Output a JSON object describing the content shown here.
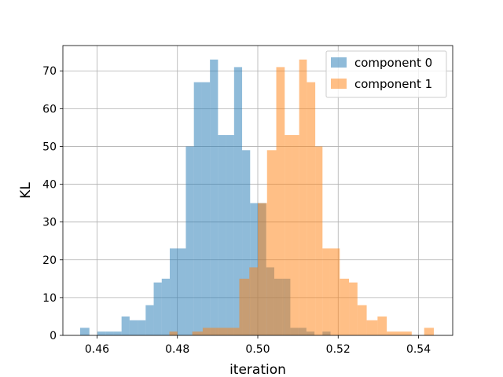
{
  "chart_data": {
    "type": "histogram",
    "title": "",
    "xlabel": "iteration",
    "ylabel": "KL",
    "xlim": [
      0.4515,
      0.5485
    ],
    "ylim": [
      0,
      76.7
    ],
    "xticks": [
      0.46,
      0.48,
      0.5,
      0.52,
      0.54
    ],
    "xtick_labels": [
      "0.46",
      "0.48",
      "0.50",
      "0.52",
      "0.54"
    ],
    "yticks": [
      0,
      10,
      20,
      30,
      40,
      50,
      60,
      70
    ],
    "ytick_labels": [
      "0",
      "10",
      "20",
      "30",
      "40",
      "50",
      "60",
      "70"
    ],
    "grid": true,
    "legend_position": "top-right",
    "series": [
      {
        "name": "component 0",
        "color": "#1f77b4",
        "alpha": 0.5,
        "bins": [
          {
            "x0": 0.4558,
            "x1": 0.4581,
            "count": 2
          },
          {
            "x0": 0.4601,
            "x1": 0.4621,
            "count": 1
          },
          {
            "x0": 0.4621,
            "x1": 0.4641,
            "count": 1
          },
          {
            "x0": 0.4641,
            "x1": 0.4661,
            "count": 1
          },
          {
            "x0": 0.4661,
            "x1": 0.4681,
            "count": 5
          },
          {
            "x0": 0.4681,
            "x1": 0.4701,
            "count": 4
          },
          {
            "x0": 0.4701,
            "x1": 0.4721,
            "count": 4
          },
          {
            "x0": 0.4721,
            "x1": 0.4741,
            "count": 8
          },
          {
            "x0": 0.4741,
            "x1": 0.4761,
            "count": 14
          },
          {
            "x0": 0.4761,
            "x1": 0.4781,
            "count": 15
          },
          {
            "x0": 0.4781,
            "x1": 0.4801,
            "count": 23
          },
          {
            "x0": 0.4801,
            "x1": 0.4821,
            "count": 23
          },
          {
            "x0": 0.4821,
            "x1": 0.4841,
            "count": 50
          },
          {
            "x0": 0.4841,
            "x1": 0.4861,
            "count": 67
          },
          {
            "x0": 0.4861,
            "x1": 0.4881,
            "count": 67
          },
          {
            "x0": 0.4881,
            "x1": 0.4901,
            "count": 73
          },
          {
            "x0": 0.4901,
            "x1": 0.4921,
            "count": 53
          },
          {
            "x0": 0.4921,
            "x1": 0.4941,
            "count": 53
          },
          {
            "x0": 0.4941,
            "x1": 0.4961,
            "count": 71
          },
          {
            "x0": 0.4961,
            "x1": 0.4981,
            "count": 49
          },
          {
            "x0": 0.4981,
            "x1": 0.5001,
            "count": 35
          },
          {
            "x0": 0.5001,
            "x1": 0.5021,
            "count": 35
          },
          {
            "x0": 0.5021,
            "x1": 0.5041,
            "count": 18
          },
          {
            "x0": 0.5041,
            "x1": 0.5061,
            "count": 15
          },
          {
            "x0": 0.5061,
            "x1": 0.5081,
            "count": 15
          },
          {
            "x0": 0.5081,
            "x1": 0.5101,
            "count": 2
          },
          {
            "x0": 0.5101,
            "x1": 0.5121,
            "count": 2
          },
          {
            "x0": 0.5121,
            "x1": 0.5141,
            "count": 1
          },
          {
            "x0": 0.5161,
            "x1": 0.5181,
            "count": 1
          }
        ]
      },
      {
        "name": "component 1",
        "color": "#ff7f0e",
        "alpha": 0.5,
        "bins": [
          {
            "x0": 0.478,
            "x1": 0.48,
            "count": 1
          },
          {
            "x0": 0.4837,
            "x1": 0.4863,
            "count": 1
          },
          {
            "x0": 0.4863,
            "x1": 0.4896,
            "count": 2
          },
          {
            "x0": 0.4896,
            "x1": 0.4925,
            "count": 2
          },
          {
            "x0": 0.4925,
            "x1": 0.4954,
            "count": 2
          },
          {
            "x0": 0.4954,
            "x1": 0.4979,
            "count": 15
          },
          {
            "x0": 0.4979,
            "x1": 0.5,
            "count": 18
          },
          {
            "x0": 0.5,
            "x1": 0.5023,
            "count": 35
          },
          {
            "x0": 0.5023,
            "x1": 0.5046,
            "count": 49
          },
          {
            "x0": 0.5046,
            "x1": 0.5067,
            "count": 71
          },
          {
            "x0": 0.5067,
            "x1": 0.5085,
            "count": 53
          },
          {
            "x0": 0.5085,
            "x1": 0.5103,
            "count": 53
          },
          {
            "x0": 0.5103,
            "x1": 0.5122,
            "count": 73
          },
          {
            "x0": 0.5122,
            "x1": 0.5143,
            "count": 67
          },
          {
            "x0": 0.5143,
            "x1": 0.5161,
            "count": 50
          },
          {
            "x0": 0.5161,
            "x1": 0.5179,
            "count": 23
          },
          {
            "x0": 0.5179,
            "x1": 0.5204,
            "count": 23
          },
          {
            "x0": 0.5204,
            "x1": 0.5227,
            "count": 15
          },
          {
            "x0": 0.5227,
            "x1": 0.5248,
            "count": 14
          },
          {
            "x0": 0.5248,
            "x1": 0.5271,
            "count": 8
          },
          {
            "x0": 0.5271,
            "x1": 0.5298,
            "count": 4
          },
          {
            "x0": 0.5298,
            "x1": 0.5321,
            "count": 5
          },
          {
            "x0": 0.5321,
            "x1": 0.5383,
            "count": 1
          },
          {
            "x0": 0.5414,
            "x1": 0.5438,
            "count": 2
          }
        ]
      }
    ]
  }
}
